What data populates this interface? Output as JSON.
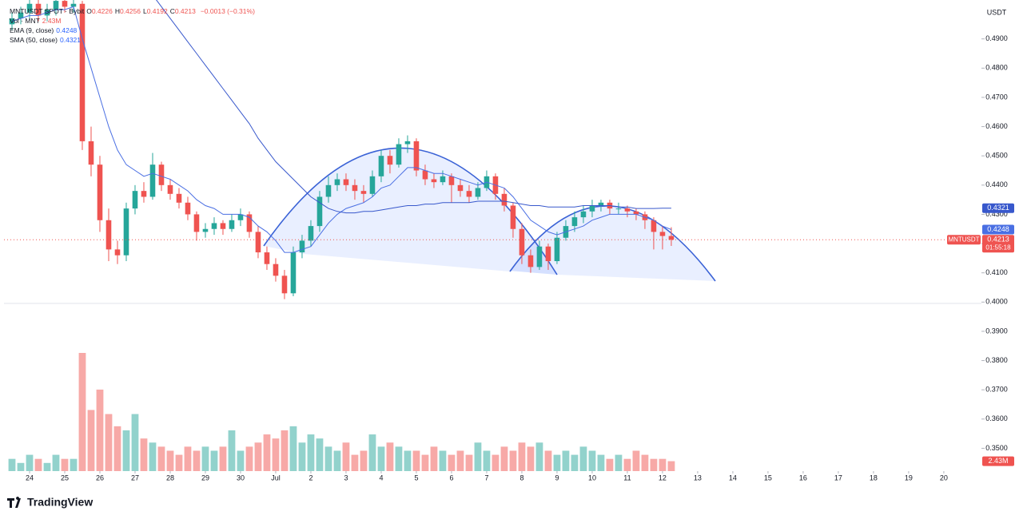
{
  "chart_data": {
    "type": "candlestick",
    "symbol": "MNTUSDT SPOT · Bybit",
    "currency": "USDT",
    "ohlc_labels": [
      "O",
      "H",
      "L",
      "C"
    ],
    "change": "−0.0013 (−0.31%)",
    "volume_name": "Vol · MNT",
    "price_tag": "MNTUSDT",
    "countdown": "01:55:18",
    "logo": "TradingView",
    "up_color": "#26a69a",
    "down_color": "#ef5350",
    "x": [
      -0.5,
      -0.25,
      0,
      0.25,
      0.5,
      0.75,
      1,
      1.25,
      1.5,
      1.75,
      2,
      2.25,
      2.5,
      2.75,
      3,
      3.25,
      3.5,
      3.75,
      4,
      4.25,
      4.5,
      4.75,
      5,
      5.25,
      5.5,
      5.75,
      6,
      6.25,
      6.5,
      6.75,
      7,
      7.25,
      7.5,
      7.75,
      8,
      8.25,
      8.5,
      8.75,
      9,
      9.25,
      9.5,
      9.75,
      10,
      10.25,
      10.5,
      10.75,
      11,
      11.25,
      11.5,
      11.75,
      12,
      12.25,
      12.5,
      12.75,
      13,
      13.25,
      13.5,
      13.75,
      14,
      14.25,
      14.5,
      14.75,
      15,
      15.25,
      15.5,
      15.75,
      16,
      16.25,
      16.5,
      16.75,
      17,
      17.25,
      17.5,
      17.75,
      18,
      18.25
    ],
    "ohlc": [
      [
        0.495,
        0.499,
        0.493,
        0.497
      ],
      [
        0.497,
        0.501,
        0.495,
        0.499
      ],
      [
        0.499,
        0.504,
        0.497,
        0.502
      ],
      [
        0.502,
        0.504,
        0.496,
        0.498
      ],
      [
        0.498,
        0.502,
        0.496,
        0.5
      ],
      [
        0.5,
        0.505,
        0.498,
        0.503
      ],
      [
        0.503,
        0.505,
        0.499,
        0.501
      ],
      [
        0.501,
        0.504,
        0.499,
        0.502
      ],
      [
        0.502,
        0.503,
        0.452,
        0.455
      ],
      [
        0.455,
        0.46,
        0.443,
        0.447
      ],
      [
        0.447,
        0.45,
        0.424,
        0.428
      ],
      [
        0.428,
        0.432,
        0.414,
        0.418
      ],
      [
        0.418,
        0.421,
        0.413,
        0.416
      ],
      [
        0.416,
        0.434,
        0.414,
        0.432
      ],
      [
        0.432,
        0.44,
        0.43,
        0.438
      ],
      [
        0.438,
        0.441,
        0.434,
        0.436
      ],
      [
        0.436,
        0.451,
        0.435,
        0.447
      ],
      [
        0.447,
        0.448,
        0.438,
        0.44
      ],
      [
        0.44,
        0.442,
        0.435,
        0.437
      ],
      [
        0.437,
        0.439,
        0.432,
        0.434
      ],
      [
        0.434,
        0.436,
        0.428,
        0.43
      ],
      [
        0.43,
        0.431,
        0.421,
        0.424
      ],
      [
        0.424,
        0.427,
        0.422,
        0.425
      ],
      [
        0.425,
        0.429,
        0.423,
        0.427
      ],
      [
        0.427,
        0.428,
        0.423,
        0.425
      ],
      [
        0.425,
        0.43,
        0.424,
        0.428
      ],
      [
        0.428,
        0.432,
        0.426,
        0.43
      ],
      [
        0.43,
        0.431,
        0.422,
        0.424
      ],
      [
        0.424,
        0.426,
        0.415,
        0.417
      ],
      [
        0.417,
        0.419,
        0.411,
        0.413
      ],
      [
        0.413,
        0.415,
        0.407,
        0.409
      ],
      [
        0.409,
        0.411,
        0.401,
        0.403
      ],
      [
        0.403,
        0.419,
        0.402,
        0.417
      ],
      [
        0.417,
        0.423,
        0.415,
        0.421
      ],
      [
        0.421,
        0.428,
        0.419,
        0.426
      ],
      [
        0.426,
        0.438,
        0.424,
        0.436
      ],
      [
        0.436,
        0.443,
        0.434,
        0.44
      ],
      [
        0.44,
        0.444,
        0.438,
        0.442
      ],
      [
        0.442,
        0.444,
        0.438,
        0.44
      ],
      [
        0.44,
        0.442,
        0.435,
        0.438
      ],
      [
        0.438,
        0.44,
        0.434,
        0.437
      ],
      [
        0.437,
        0.445,
        0.436,
        0.443
      ],
      [
        0.443,
        0.452,
        0.441,
        0.45
      ],
      [
        0.45,
        0.452,
        0.444,
        0.447
      ],
      [
        0.447,
        0.456,
        0.446,
        0.454
      ],
      [
        0.454,
        0.457,
        0.451,
        0.455
      ],
      [
        0.455,
        0.456,
        0.443,
        0.445
      ],
      [
        0.445,
        0.447,
        0.44,
        0.442
      ],
      [
        0.442,
        0.444,
        0.439,
        0.441
      ],
      [
        0.441,
        0.445,
        0.44,
        0.443
      ],
      [
        0.443,
        0.444,
        0.434,
        0.44
      ],
      [
        0.44,
        0.442,
        0.436,
        0.438
      ],
      [
        0.438,
        0.44,
        0.434,
        0.436
      ],
      [
        0.436,
        0.441,
        0.435,
        0.439
      ],
      [
        0.439,
        0.445,
        0.438,
        0.443
      ],
      [
        0.443,
        0.444,
        0.435,
        0.437
      ],
      [
        0.437,
        0.439,
        0.431,
        0.433
      ],
      [
        0.433,
        0.434,
        0.422,
        0.425
      ],
      [
        0.425,
        0.427,
        0.413,
        0.416
      ],
      [
        0.416,
        0.418,
        0.41,
        0.412
      ],
      [
        0.412,
        0.421,
        0.411,
        0.419
      ],
      [
        0.419,
        0.42,
        0.411,
        0.414
      ],
      [
        0.414,
        0.424,
        0.413,
        0.422
      ],
      [
        0.422,
        0.428,
        0.421,
        0.426
      ],
      [
        0.426,
        0.431,
        0.424,
        0.429
      ],
      [
        0.429,
        0.433,
        0.427,
        0.431
      ],
      [
        0.431,
        0.435,
        0.429,
        0.433
      ],
      [
        0.433,
        0.435,
        0.431,
        0.434
      ],
      [
        0.434,
        0.435,
        0.43,
        0.432
      ],
      [
        0.432,
        0.434,
        0.43,
        0.432
      ],
      [
        0.432,
        0.433,
        0.429,
        0.431
      ],
      [
        0.431,
        0.432,
        0.428,
        0.43
      ],
      [
        0.43,
        0.431,
        0.425,
        0.428
      ],
      [
        0.428,
        0.429,
        0.418,
        0.424
      ],
      [
        0.424,
        0.426,
        0.418,
        0.4226
      ],
      [
        0.4226,
        0.4256,
        0.4192,
        0.4213
      ]
    ],
    "volume": [
      3,
      2,
      4,
      3,
      2,
      4,
      3,
      3,
      29,
      15,
      20,
      14,
      11,
      10,
      14,
      8,
      7,
      6,
      5,
      4,
      6,
      5,
      6,
      5,
      6,
      10,
      5,
      6,
      7,
      9,
      8,
      10,
      11,
      7,
      9,
      8,
      6,
      5,
      7,
      4,
      5,
      9,
      6,
      7,
      6,
      5,
      5,
      4,
      6,
      5,
      4,
      5,
      4,
      7,
      5,
      4,
      6,
      5,
      7,
      6,
      7,
      5,
      4,
      5,
      4,
      6,
      5,
      4,
      3,
      4,
      3,
      5,
      4,
      3,
      3,
      2.43
    ],
    "volume_value_labels": [
      null,
      null,
      null,
      null,
      null,
      null,
      null,
      null,
      null,
      null,
      null,
      null,
      null,
      null,
      null,
      null,
      null,
      null,
      null,
      null,
      null,
      null,
      null,
      null,
      null,
      null,
      null,
      null,
      null,
      null,
      null,
      null,
      null,
      null,
      null,
      null,
      null,
      null,
      null,
      null,
      null,
      null,
      null,
      null,
      null,
      null,
      null,
      null,
      null,
      null,
      null,
      null,
      null,
      null,
      null,
      null,
      null,
      null,
      null,
      null,
      null,
      null,
      null,
      null,
      null,
      null,
      null,
      null,
      null,
      null,
      null,
      null,
      null,
      null,
      null,
      "2.43M"
    ],
    "series": [
      {
        "name": "EMA (9, close)",
        "color": "#4a6fe3",
        "values": [
          0.496,
          0.497,
          0.498,
          0.498,
          0.499,
          0.5,
          0.5,
          0.501,
          0.49,
          0.48,
          0.47,
          0.46,
          0.452,
          0.447,
          0.445,
          0.443,
          0.444,
          0.443,
          0.442,
          0.44,
          0.438,
          0.435,
          0.433,
          0.432,
          0.43,
          0.43,
          0.43,
          0.429,
          0.426,
          0.424,
          0.421,
          0.417,
          0.417,
          0.418,
          0.419,
          0.423,
          0.427,
          0.43,
          0.432,
          0.433,
          0.434,
          0.436,
          0.439,
          0.44,
          0.443,
          0.446,
          0.446,
          0.445,
          0.444,
          0.444,
          0.443,
          0.442,
          0.441,
          0.44,
          0.441,
          0.44,
          0.439,
          0.436,
          0.432,
          0.428,
          0.426,
          0.424,
          0.423,
          0.424,
          0.425,
          0.426,
          0.428,
          0.429,
          0.43,
          0.43,
          0.43,
          0.43,
          0.429,
          0.428,
          0.426,
          0.4248
        ]
      },
      {
        "name": "SMA (50, close)",
        "color": "#3858cc",
        "values": [
          null,
          null,
          null,
          null,
          null,
          null,
          null,
          null,
          null,
          null,
          null,
          null,
          null,
          null,
          null,
          null,
          0.505,
          0.501,
          0.497,
          0.493,
          0.489,
          0.485,
          0.481,
          0.477,
          0.473,
          0.469,
          0.465,
          0.461,
          0.456,
          0.452,
          0.448,
          0.445,
          0.442,
          0.439,
          0.436,
          0.434,
          0.432,
          0.431,
          0.4305,
          0.4305,
          0.431,
          0.431,
          0.4315,
          0.432,
          0.4325,
          0.433,
          0.433,
          0.4335,
          0.4335,
          0.434,
          0.434,
          0.434,
          0.434,
          0.4345,
          0.4345,
          0.4345,
          0.4345,
          0.434,
          0.4335,
          0.433,
          0.433,
          0.4325,
          0.4325,
          0.4325,
          0.4325,
          0.433,
          0.433,
          0.433,
          0.433,
          0.4325,
          0.4325,
          0.432,
          0.432,
          0.432,
          0.4321,
          0.4321
        ]
      }
    ],
    "xlim": [
      -0.727,
      27.07
    ],
    "xticks": [
      {
        "value": 0,
        "label": "24"
      },
      {
        "value": 1,
        "label": "25"
      },
      {
        "value": 2,
        "label": "26"
      },
      {
        "value": 3,
        "label": "27"
      },
      {
        "value": 4,
        "label": "28"
      },
      {
        "value": 5,
        "label": "29"
      },
      {
        "value": 6,
        "label": "30"
      },
      {
        "value": 7,
        "label": "Jul"
      },
      {
        "value": 8,
        "label": "2"
      },
      {
        "value": 9,
        "label": "3"
      },
      {
        "value": 10,
        "label": "4"
      },
      {
        "value": 11,
        "label": "5"
      },
      {
        "value": 12,
        "label": "6"
      },
      {
        "value": 13,
        "label": "7"
      },
      {
        "value": 14,
        "label": "8"
      },
      {
        "value": 15,
        "label": "9"
      },
      {
        "value": 16,
        "label": "10"
      },
      {
        "value": 17,
        "label": "11"
      },
      {
        "value": 18,
        "label": "12"
      },
      {
        "value": 19,
        "label": "13"
      },
      {
        "value": 20,
        "label": "14"
      },
      {
        "value": 21,
        "label": "15"
      },
      {
        "value": 22,
        "label": "16"
      },
      {
        "value": 23,
        "label": "17"
      },
      {
        "value": 24,
        "label": "18"
      },
      {
        "value": 25,
        "label": "19"
      },
      {
        "value": 26,
        "label": "20"
      }
    ],
    "ylim": [
      0.3422,
      0.5033
    ],
    "yticks": [
      {
        "value": 0.35,
        "label": "0.3500"
      },
      {
        "value": 0.36,
        "label": "0.3600"
      },
      {
        "value": 0.37,
        "label": "0.3700"
      },
      {
        "value": 0.38,
        "label": "0.3800"
      },
      {
        "value": 0.39,
        "label": "0.3900"
      },
      {
        "value": 0.4,
        "label": "0.4000"
      },
      {
        "value": 0.41,
        "label": "0.4100"
      },
      {
        "value": 0.42,
        "label": "0.4200"
      },
      {
        "value": 0.43,
        "label": "0.4300"
      },
      {
        "value": 0.44,
        "label": "0.4400"
      },
      {
        "value": 0.45,
        "label": "0.4500"
      },
      {
        "value": 0.46,
        "label": "0.4600"
      },
      {
        "value": 0.47,
        "label": "0.4700"
      },
      {
        "value": 0.48,
        "label": "0.4800"
      },
      {
        "value": 0.49,
        "label": "0.4900"
      }
    ],
    "grid": false
  }
}
